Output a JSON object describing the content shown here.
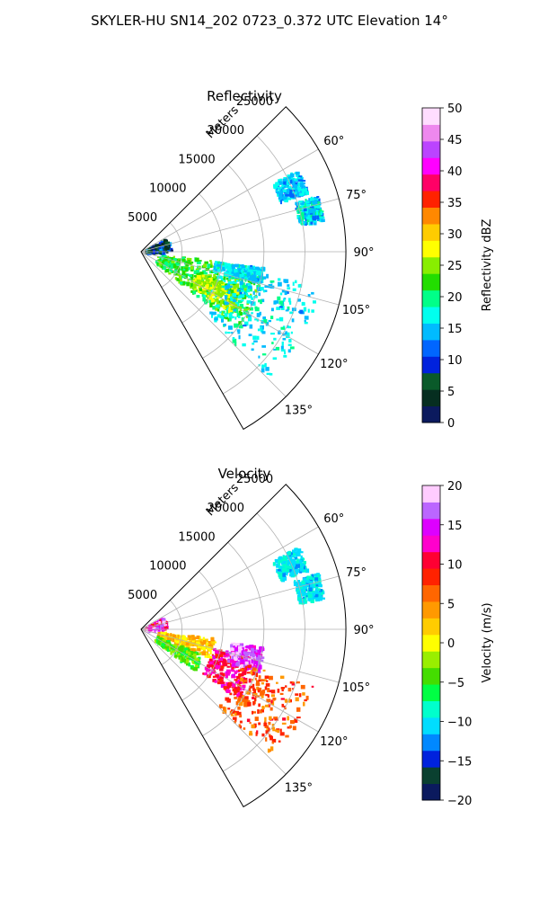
{
  "figure": {
    "title": "SKYLER-HU  SN14_202  0723_0.372 UTC Elevation 14°"
  },
  "colors": {
    "grid": "#b0b0b0",
    "frame": "#000000"
  },
  "chart_data": [
    {
      "type": "heatmap",
      "projection": "polar-sector",
      "title": "Reflectivity",
      "radial_label": "Meters",
      "azimuth_range_deg": [
        45,
        150
      ],
      "range_max_m": 25000,
      "radial_ticks": [
        5000,
        10000,
        15000,
        20000,
        25000
      ],
      "radial_tick_labels": [
        "5000",
        "10000",
        "15000",
        "20000",
        "25000"
      ],
      "angle_ticks": [
        60,
        75,
        90,
        105,
        120,
        135
      ],
      "angle_tick_labels": [
        "60°",
        "75°",
        "90°",
        "105°",
        "120°",
        "135°"
      ],
      "grid": true,
      "colorbar": {
        "label": "Reflectivity dBZ",
        "range": [
          0,
          50
        ],
        "ticks": [
          0,
          5,
          10,
          15,
          20,
          25,
          30,
          35,
          40,
          45,
          50
        ],
        "tick_labels": [
          "0",
          "5",
          "10",
          "15",
          "20",
          "25",
          "30",
          "35",
          "40",
          "45",
          "50"
        ],
        "colormap": [
          "#0b1a5e",
          "#062e20",
          "#0a5a2a",
          "#0022dd",
          "#0066ff",
          "#00bbff",
          "#00ffee",
          "#00ff88",
          "#22dd00",
          "#88ee00",
          "#ffff00",
          "#ffcc00",
          "#ff8800",
          "#ff2200",
          "#ff0066",
          "#ff00ff",
          "#bb44ff",
          "#ee88ee",
          "#ffddff"
        ]
      },
      "echo_regions": [
        {
          "az": [
            62,
            70
          ],
          "range_m": [
            18000,
            21500
          ],
          "value": 15,
          "spread": 3
        },
        {
          "az": [
            72,
            80
          ],
          "range_m": [
            19500,
            22500
          ],
          "value": 16,
          "spread": 4
        },
        {
          "az": [
            96,
            128
          ],
          "range_m": [
            2000,
            9000
          ],
          "value": 22,
          "spread": 3
        },
        {
          "az": [
            104,
            128
          ],
          "range_m": [
            9000,
            15000
          ],
          "value": 21,
          "spread": 4
        },
        {
          "az": [
            110,
            124
          ],
          "range_m": [
            7000,
            13000
          ],
          "value": 26,
          "spread": 3
        },
        {
          "az": [
            97,
            104
          ],
          "range_m": [
            9000,
            15000
          ],
          "value": 16,
          "spread": 3
        },
        {
          "az": [
            60,
            88
          ],
          "range_m": [
            500,
            3500
          ],
          "value": 8,
          "spread": 6
        },
        {
          "az": [
            100,
            135
          ],
          "range_m": [
            11000,
            22000
          ],
          "value": 16,
          "spread": 3
        }
      ]
    },
    {
      "type": "heatmap",
      "projection": "polar-sector",
      "title": "Velocity",
      "radial_label": "Meters",
      "azimuth_range_deg": [
        45,
        150
      ],
      "range_max_m": 25000,
      "radial_ticks": [
        5000,
        10000,
        15000,
        20000,
        25000
      ],
      "radial_tick_labels": [
        "5000",
        "10000",
        "15000",
        "20000",
        "25000"
      ],
      "angle_ticks": [
        60,
        75,
        90,
        105,
        120,
        135
      ],
      "angle_tick_labels": [
        "60°",
        "75°",
        "90°",
        "105°",
        "120°",
        "135°"
      ],
      "grid": true,
      "colorbar": {
        "label": "Velocity (m/s)",
        "range": [
          -20,
          20
        ],
        "ticks": [
          -20,
          -15,
          -10,
          -5,
          0,
          5,
          10,
          15,
          20
        ],
        "tick_labels": [
          "−20",
          "−15",
          "−10",
          "−5",
          "0",
          "5",
          "10",
          "15",
          "20"
        ],
        "colormap": [
          "#0b1a5e",
          "#0a4030",
          "#0022dd",
          "#0088ff",
          "#00ddff",
          "#00ffcc",
          "#00ff44",
          "#44dd00",
          "#99ee00",
          "#ffff00",
          "#ffcc00",
          "#ff9900",
          "#ff6600",
          "#ff2200",
          "#ff0033",
          "#ff00cc",
          "#dd00ff",
          "#bb66ff",
          "#ffccff"
        ]
      },
      "echo_regions": [
        {
          "az": [
            62,
            70
          ],
          "range_m": [
            18000,
            21500
          ],
          "value": -10,
          "spread": 2
        },
        {
          "az": [
            72,
            80
          ],
          "range_m": [
            19500,
            22500
          ],
          "value": -10,
          "spread": 2
        },
        {
          "az": [
            96,
            112
          ],
          "range_m": [
            2000,
            9000
          ],
          "value": 2,
          "spread": 3
        },
        {
          "az": [
            112,
            128
          ],
          "range_m": [
            2000,
            8000
          ],
          "value": -4,
          "spread": 3
        },
        {
          "az": [
            104,
            126
          ],
          "range_m": [
            9000,
            14500
          ],
          "value": 11,
          "spread": 3
        },
        {
          "az": [
            98,
            110
          ],
          "range_m": [
            11000,
            15000
          ],
          "value": 16,
          "spread": 3
        },
        {
          "az": [
            60,
            86
          ],
          "range_m": [
            500,
            3000
          ],
          "value": 14,
          "spread": 6
        },
        {
          "az": [
            108,
            135
          ],
          "range_m": [
            13000,
            22000
          ],
          "value": 7,
          "spread": 3
        }
      ]
    }
  ]
}
